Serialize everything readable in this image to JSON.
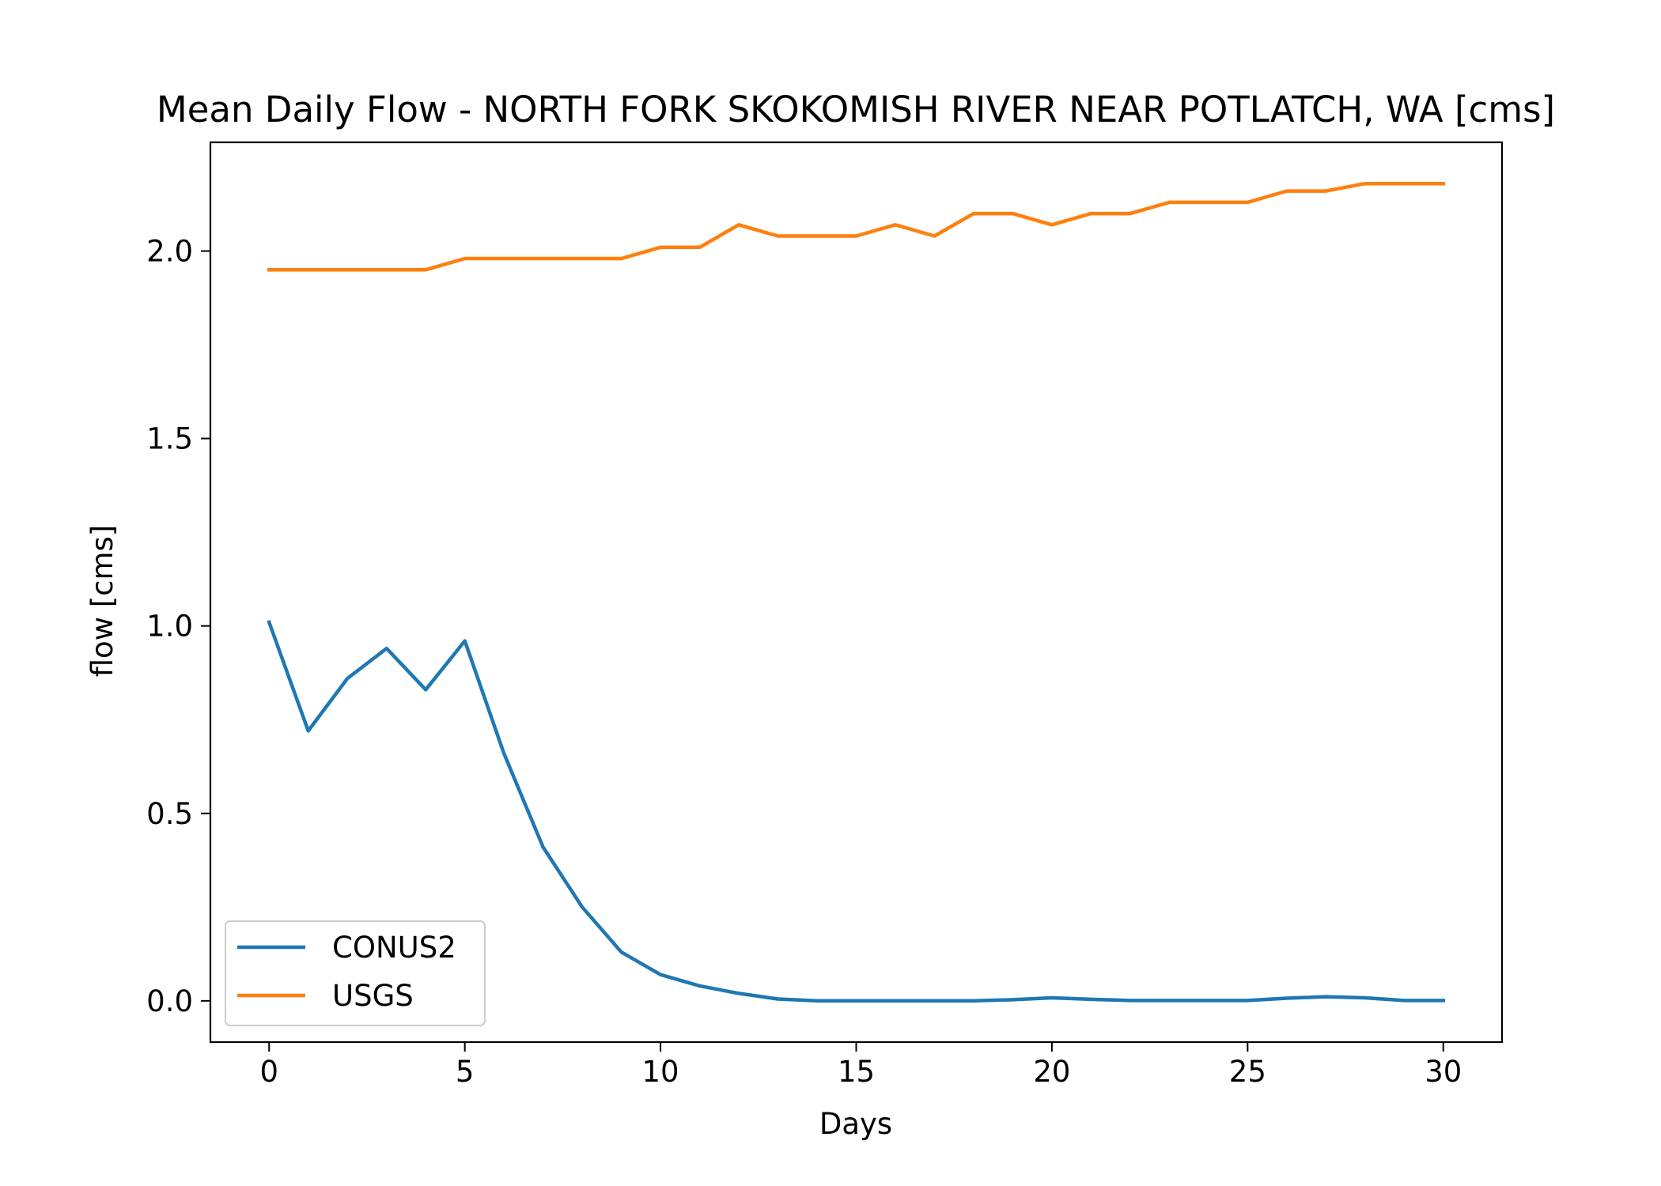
{
  "chart_data": {
    "type": "line",
    "title": "Mean Daily Flow - NORTH FORK SKOKOMISH RIVER NEAR POTLATCH, WA [cms]",
    "xlabel": "Days",
    "ylabel": "flow [cms]",
    "xlim": [
      -1.5,
      31.5
    ],
    "ylim": [
      -0.11,
      2.29
    ],
    "xticks": [
      0,
      5,
      10,
      15,
      20,
      25,
      30
    ],
    "yticks": [
      0.0,
      0.5,
      1.0,
      1.5,
      2.0
    ],
    "xtick_labels": [
      "0",
      "5",
      "10",
      "15",
      "20",
      "25",
      "30"
    ],
    "ytick_labels": [
      "0.0",
      "0.5",
      "1.0",
      "1.5",
      "2.0"
    ],
    "grid": false,
    "legend_position": "lower-left",
    "x": [
      0,
      1,
      2,
      3,
      4,
      5,
      6,
      7,
      8,
      9,
      10,
      11,
      12,
      13,
      14,
      15,
      16,
      17,
      18,
      19,
      20,
      21,
      22,
      23,
      24,
      25,
      26,
      27,
      28,
      29,
      30
    ],
    "series": [
      {
        "name": "CONUS2",
        "color": "#1f77b4",
        "values": [
          1.01,
          0.72,
          0.86,
          0.94,
          0.83,
          0.96,
          0.66,
          0.41,
          0.25,
          0.13,
          0.07,
          0.04,
          0.02,
          0.005,
          0.0,
          0.0,
          0.0,
          0.0,
          0.0,
          0.003,
          0.008,
          0.004,
          0.001,
          0.001,
          0.001,
          0.001,
          0.007,
          0.011,
          0.008,
          0.001,
          0.001
        ]
      },
      {
        "name": "USGS",
        "color": "#ff7f0e",
        "values": [
          1.95,
          1.95,
          1.95,
          1.95,
          1.95,
          1.98,
          1.98,
          1.98,
          1.98,
          1.98,
          2.01,
          2.01,
          2.07,
          2.04,
          2.04,
          2.04,
          2.07,
          2.04,
          2.1,
          2.1,
          2.07,
          2.1,
          2.1,
          2.13,
          2.13,
          2.13,
          2.16,
          2.16,
          2.18,
          2.18,
          2.18
        ]
      }
    ]
  }
}
